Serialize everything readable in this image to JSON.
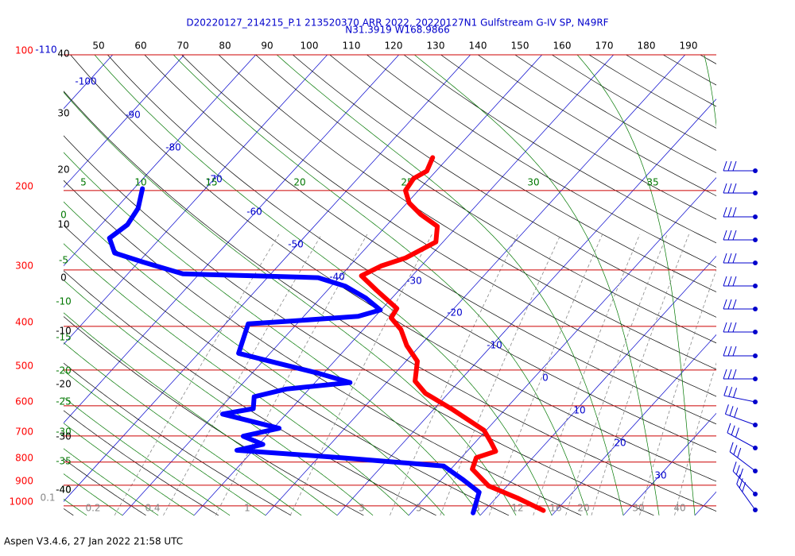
{
  "chart_data": {
    "type": "skewt",
    "title": "D20220127_214215_P.1 213520370 ARR 2022, 20220127N1 Gulfstream G-IV SP, N49RF",
    "subtitle": "N31.3919 W168.9866",
    "ylog": true,
    "ylim": [
      100,
      1050
    ],
    "yticks": [
      100,
      200,
      300,
      400,
      500,
      600,
      700,
      800,
      900,
      1000
    ],
    "top_labels": [
      50,
      60,
      70,
      80,
      90,
      100,
      110,
      120,
      130,
      140,
      150,
      160,
      170,
      180,
      190
    ],
    "isotherm_labels": [
      -110,
      -100,
      -90,
      -80,
      -70,
      -60,
      -50,
      -40,
      -30,
      -20,
      -10,
      0,
      10,
      20,
      30
    ],
    "moist_top_labels": [
      5,
      10,
      15,
      20,
      25,
      30,
      35
    ],
    "moist_left_labels": [
      0,
      -5,
      -10,
      -15,
      -20,
      -25,
      -30,
      -35,
      -40
    ],
    "dry_left_labels": [
      40,
      30,
      20,
      10,
      0,
      -10,
      -20,
      -30,
      -40
    ],
    "mixing_ratio_labels": [
      0.1,
      0.2,
      0.4,
      1,
      3,
      5,
      8,
      12,
      16,
      20,
      30,
      40
    ],
    "series": [
      {
        "color": "#ff0000",
        "x": [
          -42.2,
          -41.3,
          -42.2,
          -41.8,
          -39.7,
          -36.6,
          -32.8,
          -31.0,
          -33.2,
          -35.6,
          -37.1,
          -33.1,
          -28.0,
          -27.6,
          -24.7,
          -21.9,
          -18.4,
          -16.2,
          -13.2,
          -7.3,
          -0.3,
          2.2,
          4.0,
          2.1,
          3.0,
          7.4,
          13.0,
          18.2
        ],
        "values": [
          169,
          181,
          188,
          200,
          213,
          226,
          240,
          260,
          282,
          294,
          309,
          333,
          365,
          383,
          407,
          441,
          478,
          529,
          563,
          612,
          680,
          723,
          757,
          782,
          829,
          903,
          961,
          1024
        ]
      },
      {
        "color": "#0000ff",
        "x": [
          -78.8,
          -76.9,
          -76.3,
          -77.1,
          -74.5,
          -69.4,
          -62.3,
          -52.1,
          -42.9,
          -38.0,
          -33.7,
          -30.1,
          -32.4,
          -40.8,
          -46.8,
          -44.4,
          -39.0,
          -30.8,
          -25.1,
          -33.2,
          -36.7,
          -35.3,
          -38.9,
          -29.2,
          -33.2,
          -29.4,
          -32.3,
          -16.8,
          -1.4,
          2.9,
          6.9,
          8.7
        ],
        "values": [
          198,
          219,
          238,
          255,
          275,
          288,
          306,
          309,
          312,
          326,
          346,
          368,
          380,
          389,
          395,
          459,
          478,
          508,
          533,
          551,
          573,
          609,
          626,
          673,
          701,
          731,
          753,
          782,
          816,
          873,
          933,
          1037
        ]
      }
    ]
  },
  "footer": "Aspen V3.4.6, 27 Jan 2022  21:58 UTC"
}
